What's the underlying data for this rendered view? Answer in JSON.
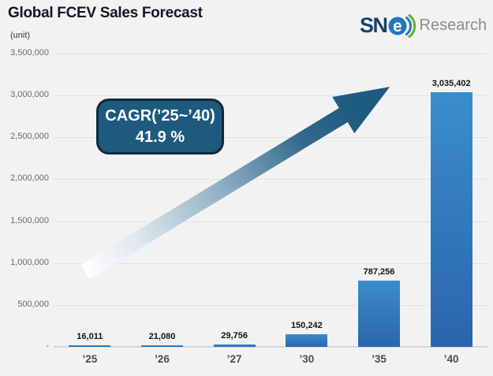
{
  "header": {
    "title": "Global FCEV Sales Forecast"
  },
  "logo": {
    "sn_text": "SN",
    "e_text": "e",
    "research_text": "Research",
    "navy": "#1d3d6f",
    "blue": "#2176bd",
    "green": "#5fb52e",
    "gray": "#8d8d8d"
  },
  "annotation": {
    "line1": "CAGR(’25~’40)",
    "line2": "41.9 %",
    "fill": "#1d5a7e",
    "border": "#10293c",
    "text_color": "#ffffff"
  },
  "arrow": {
    "color_dark": "#1e5b80",
    "color_light": "#ffffff"
  },
  "chart_data": {
    "type": "bar",
    "title": "Global FCEV Sales Forecast",
    "subtitle": "",
    "unit_label": "(unit)",
    "xlabel": "",
    "ylabel": "(unit)",
    "categories": [
      "’25",
      "’26",
      "’27",
      "’30",
      "’35",
      "’40"
    ],
    "values": [
      16011,
      21080,
      29756,
      150242,
      787256,
      3035402
    ],
    "value_labels": [
      "16,011",
      "21,080",
      "29,756",
      "150,242",
      "787,256",
      "3,035,402"
    ],
    "y_ticks": [
      {
        "label": "3,500,000",
        "value": 3500000
      },
      {
        "label": "3,000,000",
        "value": 3000000
      },
      {
        "label": "2,500,000",
        "value": 2500000
      },
      {
        "label": "2,000,000",
        "value": 2000000
      },
      {
        "label": "1,500,000",
        "value": 1500000
      },
      {
        "label": "1,000,000",
        "value": 1000000
      },
      {
        "label": "500,000",
        "value": 500000
      },
      {
        "label": "-",
        "value": 0
      }
    ],
    "ylim": [
      0,
      3500000
    ],
    "grid": true,
    "legend": false,
    "bar_gradient_top": "#3b8dcb",
    "bar_gradient_bottom": "#2a65ad",
    "annotation": "CAGR(’25~’40) 41.9 %"
  }
}
